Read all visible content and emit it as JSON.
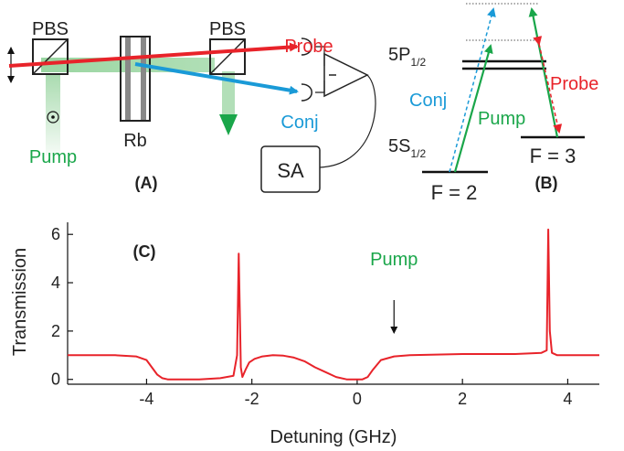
{
  "setup": {
    "pbs_left": "PBS",
    "pbs_right": "PBS",
    "rb": "Rb",
    "pump": "Pump",
    "probe": "Probe",
    "conj": "Conj",
    "sa": "SA",
    "panel": "(A)"
  },
  "levels": {
    "p_level": "5P",
    "p_sub": "1/2",
    "s_level": "5S",
    "s_sub": "1/2",
    "f2": "F = 2",
    "f3": "F = 3",
    "conj": "Conj",
    "pump": "Pump",
    "probe": "Probe",
    "panel": "(B)"
  },
  "plot": {
    "panel": "(C)",
    "annotation": "Pump",
    "annotation_x": 0.7
  },
  "colors": {
    "probe": "#e8232a",
    "conj": "#1a9ad7",
    "pump": "#1aa64a",
    "trace": "#e8232a"
  },
  "chart_data": {
    "type": "line",
    "title": "",
    "xlabel": "Detuning (GHz)",
    "ylabel": "Transmission",
    "xlim": [
      -5.5,
      4.6
    ],
    "ylim": [
      -0.2,
      6.5
    ],
    "xticks": [
      -4,
      -2,
      0,
      2,
      4
    ],
    "yticks": [
      0,
      2,
      4,
      6
    ],
    "x_tick_labels": [
      "-4",
      "-2",
      "0",
      "2",
      "4"
    ],
    "y_tick_labels": [
      "0",
      "2",
      "4",
      "6"
    ],
    "series": [
      {
        "x": [
          -5.5,
          -4.6,
          -4.2,
          -4.0,
          -3.9,
          -3.8,
          -3.7,
          -3.6,
          -3.5,
          -3.0,
          -2.6,
          -2.35,
          -2.28,
          -2.25,
          -2.23,
          -2.21,
          -2.18,
          -2.12,
          -2.05,
          -1.95,
          -1.8,
          -1.6,
          -1.4,
          -1.2,
          -1.0,
          -0.8,
          -0.6,
          -0.4,
          -0.2,
          0.0,
          0.1,
          0.2,
          0.3,
          0.45,
          0.7,
          1.0,
          2.0,
          3.0,
          3.5,
          3.6,
          3.63,
          3.66,
          3.7,
          3.8,
          4.0,
          4.6
        ],
        "y": [
          1.0,
          1.0,
          0.95,
          0.8,
          0.5,
          0.2,
          0.05,
          0.0,
          0.0,
          0.0,
          0.05,
          0.15,
          1.0,
          5.2,
          3.0,
          0.5,
          0.1,
          0.4,
          0.7,
          0.85,
          0.95,
          1.0,
          0.98,
          0.9,
          0.75,
          0.5,
          0.3,
          0.1,
          0.0,
          0.0,
          0.0,
          0.1,
          0.4,
          0.8,
          0.95,
          1.0,
          1.05,
          1.05,
          1.1,
          1.2,
          6.2,
          2.0,
          1.1,
          1.0,
          1.0,
          1.0
        ]
      }
    ]
  }
}
